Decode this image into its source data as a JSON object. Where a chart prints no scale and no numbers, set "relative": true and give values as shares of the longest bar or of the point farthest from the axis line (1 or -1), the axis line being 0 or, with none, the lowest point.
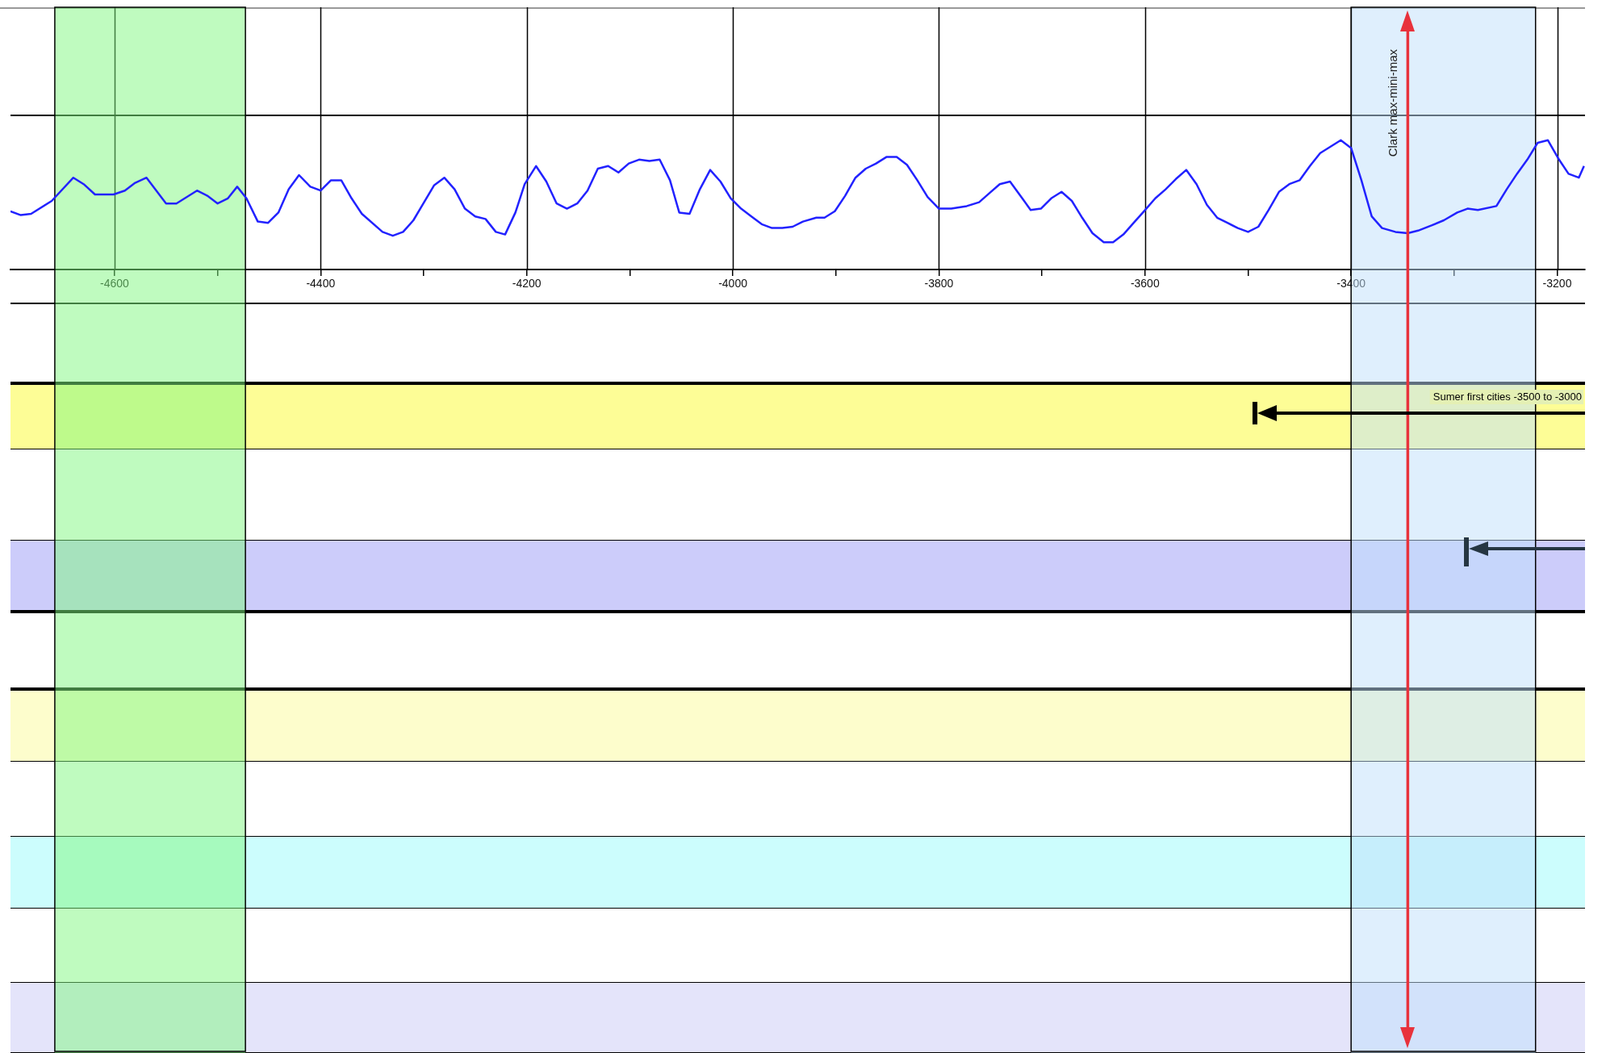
{
  "chart_data": {
    "type": "line",
    "relative": true,
    "grid": "x",
    "xlim": [
      -4701,
      -3173
    ],
    "xticks": [
      -4600,
      {
        "value": -4500,
        "label": null
      },
      -4400,
      {
        "value": -4300,
        "label": null
      },
      -4200,
      {
        "value": -4100,
        "label": null
      },
      -4000,
      {
        "value": -3900,
        "label": null
      },
      -3800,
      {
        "value": -3700,
        "label": null
      },
      -3600,
      {
        "value": -3500,
        "label": null
      },
      -3400,
      {
        "value": -3300,
        "label": null
      },
      -3200
    ],
    "series": [
      {
        "color": "#2222ff",
        "x": [
          -4701,
          -4691,
          -4681,
          -4661,
          -4640,
          -4630,
          -4619,
          -4601,
          -4590,
          -4580,
          -4569,
          -4550,
          -4540,
          -4520,
          -4510,
          -4500,
          -4490,
          -4481,
          -4472,
          -4461,
          -4451,
          -4441,
          -4431,
          -4421,
          -4410,
          -4400,
          -4390,
          -4380,
          -4370,
          -4360,
          -4340,
          -4330,
          -4320,
          -4310,
          -4290,
          -4280,
          -4270,
          -4260,
          -4250,
          -4240,
          -4230,
          -4221,
          -4211,
          -4202,
          -4191,
          -4181,
          -4171,
          -4161,
          -4151,
          -4141,
          -4131,
          -4121,
          -4111,
          -4101,
          -4091,
          -4081,
          -4071,
          -4061,
          -4052,
          -4042,
          -4032,
          -4022,
          -4012,
          -4002,
          -3992,
          -3982,
          -3972,
          -3962,
          -3952,
          -3942,
          -3932,
          -3919,
          -3911,
          -3901,
          -3891,
          -3881,
          -3871,
          -3861,
          -3851,
          -3841,
          -3831,
          -3821,
          -3811,
          -3800,
          -3788,
          -3773,
          -3761,
          -3751,
          -3741,
          -3731,
          -3721,
          -3711,
          -3701,
          -3691,
          -3681,
          -3671,
          -3661,
          -3651,
          -3640,
          -3631,
          -3621,
          -3611,
          -3601,
          -3590,
          -3580,
          -3570,
          -3560,
          -3550,
          -3540,
          -3530,
          -3520,
          -3510,
          -3500,
          -3490,
          -3480,
          -3470,
          -3460,
          -3450,
          -3440,
          -3430,
          -3420,
          -3410,
          -3400,
          -3390,
          -3380,
          -3370,
          -3357,
          -3345,
          -3335,
          -3322,
          -3310,
          -3297,
          -3287,
          -3277,
          -3259,
          -3249,
          -3239,
          -3229,
          -3219,
          -3209,
          -3199,
          -3189,
          -3179,
          -3174
        ],
        "values": [
          0.45,
          0.42,
          0.43,
          0.53,
          0.71,
          0.66,
          0.58,
          0.58,
          0.61,
          0.67,
          0.71,
          0.51,
          0.51,
          0.61,
          0.57,
          0.51,
          0.55,
          0.64,
          0.55,
          0.37,
          0.36,
          0.44,
          0.62,
          0.73,
          0.64,
          0.61,
          0.69,
          0.69,
          0.55,
          0.43,
          0.29,
          0.26,
          0.29,
          0.38,
          0.65,
          0.71,
          0.62,
          0.47,
          0.41,
          0.39,
          0.29,
          0.27,
          0.44,
          0.66,
          0.8,
          0.68,
          0.51,
          0.47,
          0.51,
          0.61,
          0.78,
          0.8,
          0.75,
          0.82,
          0.85,
          0.84,
          0.85,
          0.69,
          0.44,
          0.43,
          0.62,
          0.77,
          0.68,
          0.55,
          0.47,
          0.41,
          0.35,
          0.32,
          0.32,
          0.33,
          0.37,
          0.4,
          0.4,
          0.45,
          0.57,
          0.71,
          0.78,
          0.82,
          0.87,
          0.87,
          0.81,
          0.69,
          0.56,
          0.47,
          0.47,
          0.49,
          0.52,
          0.59,
          0.66,
          0.68,
          0.57,
          0.46,
          0.47,
          0.55,
          0.6,
          0.53,
          0.4,
          0.28,
          0.21,
          0.21,
          0.27,
          0.36,
          0.45,
          0.55,
          0.62,
          0.7,
          0.77,
          0.66,
          0.5,
          0.4,
          0.36,
          0.32,
          0.29,
          0.33,
          0.46,
          0.6,
          0.66,
          0.69,
          0.8,
          0.9,
          0.95,
          1.0,
          0.94,
          0.69,
          0.41,
          0.32,
          0.29,
          0.28,
          0.3,
          0.34,
          0.38,
          0.44,
          0.47,
          0.46,
          0.49,
          0.62,
          0.74,
          0.85,
          0.98,
          1.0,
          0.86,
          0.74,
          0.71,
          0.8
        ]
      }
    ],
    "bands": [
      {
        "axis": "x",
        "from": -4658,
        "to": -4473,
        "color": "#80f880"
      },
      {
        "axis": "x",
        "from": -3400,
        "to": -3221,
        "color": "#c0dffb"
      }
    ],
    "ref_lines": [
      {
        "axis": "x",
        "value": -3345,
        "label": "Clark max-mini-max",
        "color": "#e8323c"
      }
    ],
    "annotations": [
      "Sumer first cities -3500 to -3000"
    ]
  }
}
